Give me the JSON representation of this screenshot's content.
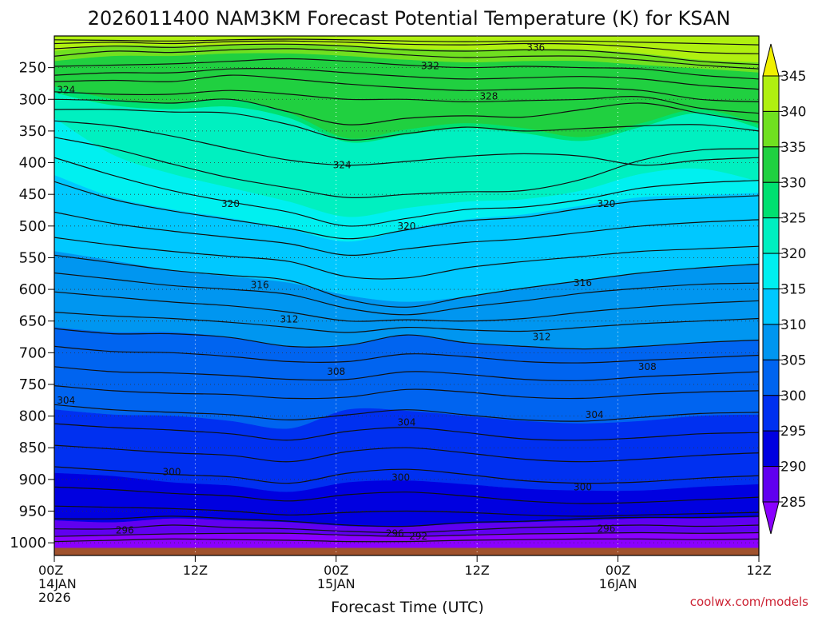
{
  "chart_data": {
    "type": "heatmap",
    "title": "2026011400 NAM3KM Forecast Potential Temperature (K) for KSAN",
    "xlabel": "Forecast Time (UTC)",
    "ylabel": "",
    "x_ticks": [
      {
        "hour": 0,
        "line1": "00Z",
        "line2": "14JAN",
        "line3": "2026"
      },
      {
        "hour": 12,
        "line1": "12Z",
        "line2": "",
        "line3": ""
      },
      {
        "hour": 24,
        "line1": "00Z",
        "line2": "15JAN",
        "line3": ""
      },
      {
        "hour": 36,
        "line1": "12Z",
        "line2": "",
        "line3": ""
      },
      {
        "hour": 48,
        "line1": "00Z",
        "line2": "16JAN",
        "line3": ""
      },
      {
        "hour": 60,
        "line1": "12Z",
        "line2": "",
        "line3": ""
      }
    ],
    "xlim": [
      0,
      60
    ],
    "y_ticks": [
      250,
      300,
      350,
      400,
      450,
      500,
      550,
      600,
      650,
      700,
      750,
      800,
      850,
      900,
      950,
      1000
    ],
    "ylim": [
      1020,
      200
    ],
    "colorbar_levels": [
      285,
      290,
      295,
      300,
      305,
      310,
      315,
      320,
      325,
      330,
      335,
      340,
      345
    ],
    "colorbar_colors": [
      "#8a00ff",
      "#6000f0",
      "#0000e0",
      "#0030f0",
      "#0064f0",
      "#0096f0",
      "#00c8ff",
      "#00f0f0",
      "#00f0c0",
      "#00e070",
      "#20d040",
      "#70e020",
      "#b0f010",
      "#f0f000"
    ],
    "contour_labels": [
      {
        "text": "336",
        "hour": 41,
        "p": 218
      },
      {
        "text": "332",
        "hour": 32,
        "p": 247
      },
      {
        "text": "328",
        "hour": 37,
        "p": 295
      },
      {
        "text": "324",
        "hour": 1,
        "p": 285
      },
      {
        "text": "324",
        "hour": 24.5,
        "p": 404
      },
      {
        "text": "320",
        "hour": 15,
        "p": 465
      },
      {
        "text": "320",
        "hour": 30,
        "p": 500
      },
      {
        "text": "320",
        "hour": 47,
        "p": 465
      },
      {
        "text": "316",
        "hour": 17.5,
        "p": 593
      },
      {
        "text": "316",
        "hour": 45,
        "p": 590
      },
      {
        "text": "312",
        "hour": 20,
        "p": 647
      },
      {
        "text": "312",
        "hour": 41.5,
        "p": 675
      },
      {
        "text": "308",
        "hour": 24,
        "p": 730
      },
      {
        "text": "308",
        "hour": 50.5,
        "p": 722
      },
      {
        "text": "304",
        "hour": 1,
        "p": 775
      },
      {
        "text": "304",
        "hour": 30,
        "p": 810
      },
      {
        "text": "304",
        "hour": 46,
        "p": 798
      },
      {
        "text": "300",
        "hour": 10,
        "p": 888
      },
      {
        "text": "300",
        "hour": 29.5,
        "p": 897
      },
      {
        "text": "300",
        "hour": 45,
        "p": 912
      },
      {
        "text": "296",
        "hour": 6,
        "p": 980
      },
      {
        "text": "296",
        "hour": 29,
        "p": 985
      },
      {
        "text": "292",
        "hour": 31,
        "p": 990
      },
      {
        "text": "296",
        "hour": 47,
        "p": 978
      }
    ],
    "bands": [
      {
        "color": "#b0f010",
        "top": [
          200,
          200,
          200,
          200,
          200,
          200,
          200,
          200,
          200,
          200,
          200,
          200,
          200
        ],
        "bottom": [
          224,
          215,
          216,
          214,
          213,
          215,
          220,
          222,
          221,
          222,
          228,
          238,
          242
        ]
      },
      {
        "color": "#70e020",
        "top": [
          224,
          215,
          216,
          214,
          213,
          215,
          220,
          222,
          221,
          222,
          228,
          238,
          242
        ],
        "bottom": [
          240,
          232,
          232,
          228,
          228,
          232,
          238,
          242,
          240,
          240,
          246,
          252,
          258
        ]
      },
      {
        "color": "#20d040",
        "top": [
          240,
          232,
          232,
          228,
          228,
          232,
          238,
          242,
          240,
          240,
          246,
          252,
          258
        ],
        "bottom": [
          280,
          300,
          306,
          300,
          322,
          362,
          348,
          338,
          346,
          360,
          338,
          316,
          340
        ]
      },
      {
        "color": "#00e070",
        "top": [
          280,
          300,
          306,
          300,
          322,
          362,
          348,
          338,
          346,
          360,
          338,
          316,
          340
        ],
        "bottom": [
          290,
          310,
          316,
          312,
          330,
          368,
          356,
          346,
          354,
          366,
          344,
          322,
          346
        ]
      },
      {
        "color": "#00f0c0",
        "top": [
          290,
          310,
          316,
          312,
          330,
          368,
          356,
          346,
          354,
          366,
          344,
          322,
          346
        ],
        "bottom": [
          330,
          388,
          418,
          440,
          462,
          486,
          472,
          462,
          458,
          444,
          418,
          410,
          430
        ]
      },
      {
        "color": "#00f0f0",
        "top": [
          330,
          388,
          418,
          440,
          462,
          486,
          472,
          462,
          458,
          444,
          418,
          410,
          430
        ],
        "bottom": [
          420,
          455,
          474,
          488,
          505,
          525,
          505,
          490,
          482,
          468,
          455,
          452,
          448
        ]
      },
      {
        "color": "#00c8ff",
        "top": [
          420,
          455,
          474,
          488,
          505,
          525,
          505,
          490,
          482,
          468,
          455,
          452,
          448
        ],
        "bottom": [
          540,
          555,
          570,
          580,
          590,
          610,
          620,
          612,
          598,
          586,
          574,
          566,
          560
        ]
      },
      {
        "color": "#0096f0",
        "top": [
          540,
          555,
          570,
          580,
          590,
          610,
          620,
          612,
          598,
          586,
          574,
          566,
          560
        ],
        "bottom": [
          660,
          668,
          668,
          676,
          690,
          688,
          672,
          684,
          690,
          694,
          690,
          684,
          680
        ]
      },
      {
        "color": "#0064f0",
        "top": [
          660,
          668,
          668,
          676,
          690,
          688,
          672,
          684,
          690,
          694,
          690,
          684,
          680
        ],
        "bottom": [
          790,
          798,
          800,
          808,
          820,
          790,
          792,
          800,
          808,
          812,
          808,
          800,
          798
        ]
      },
      {
        "color": "#0030f0",
        "top": [
          790,
          798,
          800,
          808,
          820,
          790,
          792,
          800,
          808,
          812,
          808,
          800,
          798
        ],
        "bottom": [
          890,
          895,
          905,
          910,
          920,
          905,
          902,
          908,
          915,
          918,
          918,
          912,
          908
        ]
      },
      {
        "color": "#0000e0",
        "top": [
          890,
          895,
          905,
          910,
          920,
          905,
          902,
          908,
          915,
          918,
          918,
          912,
          908
        ],
        "bottom": [
          965,
          968,
          962,
          965,
          968,
          974,
          975,
          970,
          968,
          965,
          962,
          962,
          960
        ]
      },
      {
        "color": "#6000f0",
        "top": [
          965,
          968,
          962,
          965,
          968,
          974,
          975,
          970,
          968,
          965,
          962,
          962,
          960
        ],
        "bottom": [
          990,
          988,
          986,
          985,
          985,
          988,
          990,
          988,
          986,
          985,
          984,
          985,
          984
        ]
      },
      {
        "color": "#8a00ff",
        "top": [
          990,
          988,
          986,
          985,
          985,
          988,
          990,
          988,
          986,
          985,
          984,
          985,
          984
        ],
        "bottom": [
          1008,
          1008,
          1008,
          1008,
          1008,
          1008,
          1008,
          1008,
          1008,
          1008,
          1008,
          1008,
          1008
        ]
      }
    ],
    "contours": [
      [
        206,
        207,
        208,
        206,
        205,
        206,
        208,
        209,
        208,
        208,
        210,
        212,
        214
      ],
      [
        212,
        210,
        212,
        209,
        208,
        210,
        213,
        214,
        212,
        213,
        218,
        226,
        228
      ],
      [
        220,
        216,
        218,
        214,
        213,
        216,
        222,
        224,
        222,
        223,
        230,
        240,
        245
      ],
      [
        232,
        224,
        226,
        222,
        220,
        224,
        230,
        234,
        232,
        232,
        238,
        246,
        252
      ],
      [
        248,
        246,
        244,
        240,
        236,
        240,
        246,
        250,
        248,
        250,
        252,
        262,
        268
      ],
      [
        262,
        258,
        258,
        252,
        252,
        258,
        264,
        268,
        266,
        264,
        268,
        278,
        284
      ],
      [
        272,
        270,
        272,
        262,
        268,
        276,
        282,
        286,
        284,
        282,
        286,
        300,
        304
      ],
      [
        288,
        292,
        292,
        286,
        292,
        300,
        300,
        304,
        302,
        300,
        296,
        314,
        322
      ],
      [
        300,
        302,
        306,
        300,
        320,
        340,
        330,
        326,
        328,
        316,
        306,
        322,
        336
      ],
      [
        316,
        316,
        320,
        322,
        340,
        364,
        354,
        344,
        350,
        346,
        342,
        340,
        350
      ],
      [
        334,
        342,
        358,
        378,
        396,
        404,
        398,
        390,
        386,
        390,
        404,
        396,
        392
      ],
      [
        360,
        378,
        402,
        424,
        440,
        455,
        450,
        446,
        444,
        426,
        396,
        380,
        378
      ],
      [
        392,
        420,
        444,
        462,
        478,
        500,
        488,
        474,
        470,
        458,
        440,
        432,
        428
      ],
      [
        430,
        458,
        476,
        490,
        504,
        520,
        506,
        492,
        486,
        472,
        460,
        456,
        452
      ],
      [
        478,
        496,
        508,
        518,
        528,
        546,
        536,
        526,
        520,
        510,
        500,
        494,
        490
      ],
      [
        518,
        530,
        540,
        548,
        556,
        580,
        582,
        566,
        556,
        548,
        540,
        536,
        532
      ],
      [
        546,
        558,
        570,
        578,
        586,
        616,
        628,
        612,
        598,
        586,
        574,
        566,
        560
      ],
      [
        574,
        584,
        594,
        600,
        608,
        630,
        640,
        628,
        618,
        606,
        598,
        592,
        590
      ],
      [
        604,
        612,
        620,
        626,
        636,
        650,
        648,
        650,
        646,
        636,
        628,
        622,
        618
      ],
      [
        636,
        642,
        646,
        652,
        660,
        668,
        660,
        664,
        666,
        660,
        654,
        650,
        646
      ],
      [
        662,
        670,
        670,
        676,
        690,
        688,
        672,
        684,
        690,
        694,
        690,
        684,
        680
      ],
      [
        690,
        698,
        700,
        706,
        714,
        714,
        702,
        706,
        714,
        716,
        712,
        708,
        704
      ],
      [
        722,
        730,
        732,
        736,
        742,
        742,
        730,
        734,
        742,
        744,
        738,
        734,
        730
      ],
      [
        752,
        760,
        764,
        766,
        772,
        770,
        758,
        762,
        770,
        772,
        766,
        762,
        760
      ],
      [
        782,
        790,
        794,
        798,
        806,
        798,
        790,
        798,
        806,
        808,
        802,
        796,
        794
      ],
      [
        812,
        818,
        822,
        828,
        838,
        824,
        818,
        826,
        836,
        838,
        834,
        828,
        826
      ],
      [
        846,
        852,
        858,
        862,
        872,
        856,
        850,
        858,
        868,
        872,
        868,
        862,
        858
      ],
      [
        880,
        886,
        892,
        896,
        906,
        890,
        884,
        892,
        902,
        906,
        904,
        898,
        894
      ],
      [
        912,
        916,
        922,
        926,
        934,
        924,
        920,
        926,
        934,
        938,
        936,
        932,
        928
      ],
      [
        942,
        944,
        946,
        950,
        956,
        952,
        950,
        952,
        956,
        958,
        956,
        954,
        952
      ],
      [
        962,
        962,
        958,
        962,
        966,
        972,
        974,
        968,
        966,
        962,
        960,
        960,
        958
      ],
      [
        978,
        978,
        972,
        976,
        978,
        982,
        984,
        980,
        976,
        974,
        972,
        974,
        972
      ],
      [
        990,
        988,
        986,
        985,
        985,
        988,
        990,
        988,
        986,
        985,
        984,
        985,
        984
      ],
      [
        998,
        996,
        994,
        995,
        996,
        998,
        998,
        996,
        995,
        994,
        994,
        995,
        994
      ]
    ],
    "ground_color": "#a0522d",
    "ground_top_p": 1008,
    "watermark": "coolwx.com/models"
  }
}
